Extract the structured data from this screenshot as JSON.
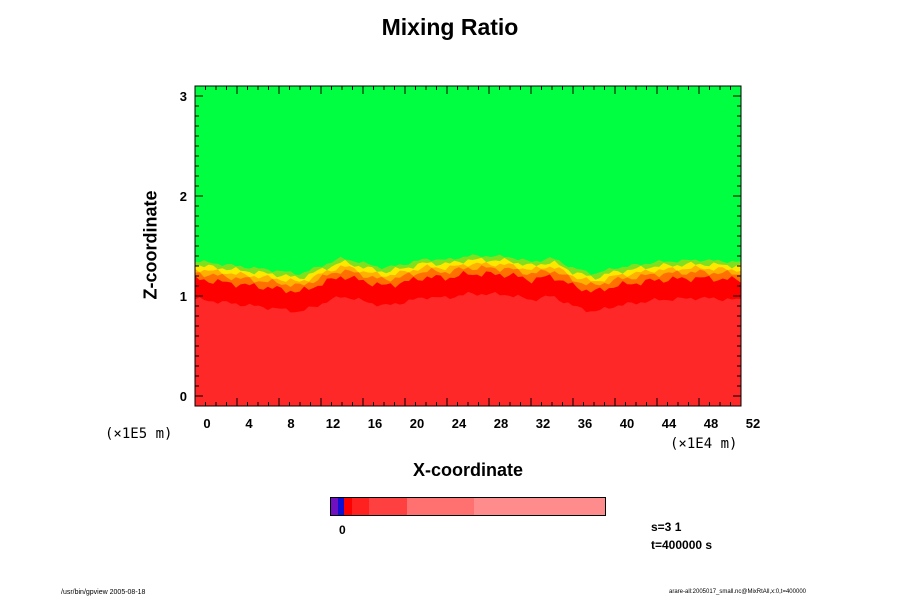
{
  "colors": {
    "upper_layer": "#00ff40",
    "transition_1": "#80e020",
    "transition_2": "#ffe800",
    "transition_3": "#ffb000",
    "transition_4": "#ff7000",
    "lower_layer_1": "#ff0000",
    "lower_layer_2": "#ff2828"
  },
  "chart_data": {
    "type": "heatmap",
    "title": "Mixing Ratio",
    "xlabel": "X-coordinate",
    "ylabel": "Z-coordinate",
    "x_ticks": [
      "0",
      "4",
      "8",
      "12",
      "16",
      "20",
      "24",
      "28",
      "32",
      "36",
      "40",
      "44",
      "48",
      "52"
    ],
    "y_ticks": [
      "0",
      "1",
      "2",
      "3"
    ],
    "xlim": [
      0,
      52
    ],
    "ylim": [
      -0.1,
      3.1
    ],
    "x_scale_label": "(×1E4 m)",
    "y_scale_label": "(×1E5 m)",
    "grid": false,
    "field_regions": [
      {
        "range": "z ≈ 1.3 to 3.1",
        "value": "high (green)"
      },
      {
        "range": "z ≈ 1.1 to 1.4",
        "value": "turbulent transition (yellow/orange)"
      },
      {
        "range": "z ≈ -0.1 to 1.1",
        "value": "low (red)"
      }
    ],
    "interface_height_samples": {
      "x": [
        0,
        4,
        8,
        10,
        12,
        14,
        16,
        18,
        20,
        22,
        24,
        26,
        28,
        30,
        32,
        34,
        36,
        38,
        40,
        44,
        48,
        52
      ],
      "z": [
        1.35,
        1.3,
        1.25,
        1.22,
        1.3,
        1.38,
        1.33,
        1.28,
        1.32,
        1.37,
        1.36,
        1.4,
        1.4,
        1.39,
        1.34,
        1.38,
        1.28,
        1.22,
        1.28,
        1.34,
        1.36,
        1.34
      ]
    },
    "colorbar": {
      "ticks": [
        "0"
      ],
      "segments": [
        "#7010c0",
        "#1010d0",
        "#ff0000",
        "#ff2020",
        "#ff4040",
        "#ff7070",
        "#ff8c8c"
      ]
    }
  },
  "annotations": {
    "step": "s=3 1",
    "time": "t=400000 s"
  },
  "footer": {
    "left": "/usr/bin/gpview 2005-08-18",
    "right": "arare-all:2005017_small.nc@MixRtAll,x:0,t=400000"
  }
}
